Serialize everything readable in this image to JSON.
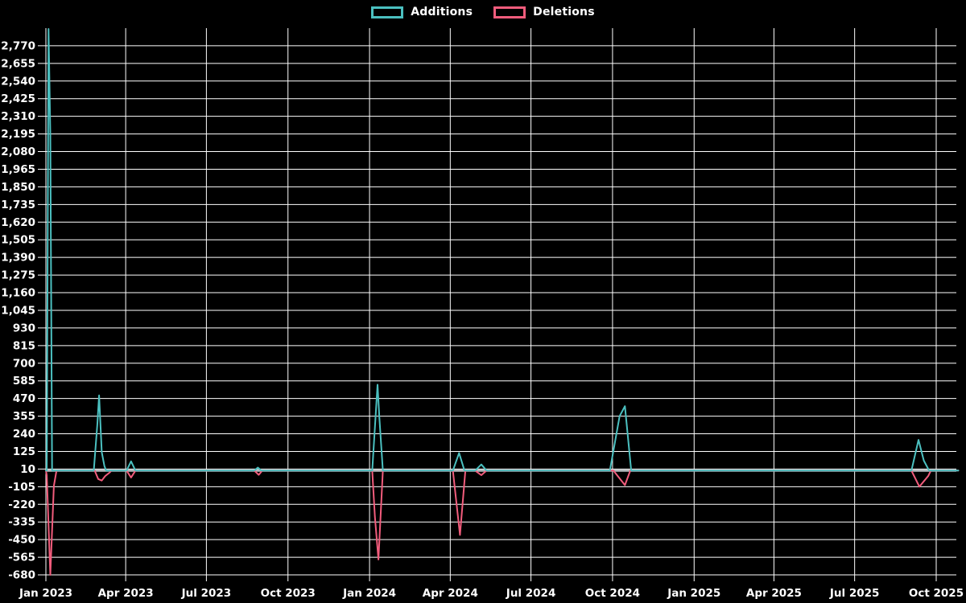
{
  "legend": {
    "items": [
      {
        "label": "Additions",
        "color": "#4bc0c0"
      },
      {
        "label": "Deletions",
        "color": "#f25c7c"
      }
    ]
  },
  "chart_data": {
    "type": "line",
    "title": "",
    "xlabel": "",
    "ylabel": "",
    "background_color": "#000000",
    "grid": true,
    "grid_color": "#ffffff",
    "zero_line_color": "#b3b9bd",
    "legend_position": "top-center",
    "x_axis": {
      "start_date": "2023-01-01",
      "end_date": "2025-10-26",
      "tick_labels": [
        "Jan 2023",
        "Apr 2023",
        "Jul 2023",
        "Oct 2023",
        "Jan 2024",
        "Apr 2024",
        "Jul 2024",
        "Oct 2024",
        "Jan 2025",
        "Apr 2025",
        "Jul 2025",
        "Oct 2025"
      ],
      "tick_dates": [
        "2023-01-01",
        "2023-04-01",
        "2023-07-01",
        "2023-10-01",
        "2024-01-01",
        "2024-04-01",
        "2024-07-01",
        "2024-10-01",
        "2025-01-01",
        "2025-04-01",
        "2025-07-01",
        "2025-10-01"
      ]
    },
    "y_axis": {
      "min": -680,
      "max": 2885,
      "tick_step": 115,
      "first_labeled_tick": 2770,
      "tick_labels": [
        "2,770",
        "2,655",
        "2,540",
        "2,425",
        "2,310",
        "2,195",
        "2,080",
        "1,965",
        "1,850",
        "1,735",
        "1,620",
        "1,505",
        "1,390",
        "1,275",
        "1,160",
        "1,045",
        "930",
        "815",
        "700",
        "585",
        "470",
        "355",
        "240",
        "125",
        "10",
        "-105",
        "-220",
        "-335",
        "-450",
        "-565",
        "-680"
      ]
    },
    "note": "Daily series; values are 0 between the anchor points listed below.",
    "series": [
      {
        "name": "Additions",
        "color": "#4bc0c0",
        "points": [
          [
            "2023-01-01",
            0
          ],
          [
            "2023-01-02",
            0
          ],
          [
            "2023-01-04",
            2880
          ],
          [
            "2023-01-05",
            2540
          ],
          [
            "2023-01-06",
            2195
          ],
          [
            "2023-01-08",
            0
          ],
          [
            "2023-02-24",
            0
          ],
          [
            "2023-02-28",
            300
          ],
          [
            "2023-03-02",
            490
          ],
          [
            "2023-03-05",
            120
          ],
          [
            "2023-03-08",
            30
          ],
          [
            "2023-03-10",
            0
          ],
          [
            "2023-04-02",
            0
          ],
          [
            "2023-04-07",
            60
          ],
          [
            "2023-04-12",
            0
          ],
          [
            "2023-08-24",
            0
          ],
          [
            "2023-08-28",
            20
          ],
          [
            "2023-09-01",
            0
          ],
          [
            "2024-01-04",
            0
          ],
          [
            "2024-01-10",
            560
          ],
          [
            "2024-01-12",
            350
          ],
          [
            "2024-01-16",
            0
          ],
          [
            "2024-04-04",
            0
          ],
          [
            "2024-04-11",
            115
          ],
          [
            "2024-04-17",
            0
          ],
          [
            "2024-04-29",
            0
          ],
          [
            "2024-05-06",
            40
          ],
          [
            "2024-05-12",
            0
          ],
          [
            "2024-09-28",
            0
          ],
          [
            "2024-10-09",
            355
          ],
          [
            "2024-10-15",
            420
          ],
          [
            "2024-10-22",
            0
          ],
          [
            "2025-09-03",
            0
          ],
          [
            "2025-09-11",
            200
          ],
          [
            "2025-09-17",
            65
          ],
          [
            "2025-09-23",
            0
          ],
          [
            "2025-10-26",
            0
          ]
        ]
      },
      {
        "name": "Deletions",
        "color": "#f25c7c",
        "points": [
          [
            "2023-01-01",
            0
          ],
          [
            "2023-01-02",
            -30
          ],
          [
            "2023-01-06",
            -680
          ],
          [
            "2023-01-10",
            -100
          ],
          [
            "2023-01-13",
            0
          ],
          [
            "2023-02-25",
            0
          ],
          [
            "2023-03-01",
            -55
          ],
          [
            "2023-03-05",
            -65
          ],
          [
            "2023-03-09",
            -35
          ],
          [
            "2023-03-14",
            -12
          ],
          [
            "2023-03-16",
            0
          ],
          [
            "2023-04-02",
            0
          ],
          [
            "2023-04-07",
            -45
          ],
          [
            "2023-04-12",
            0
          ],
          [
            "2023-08-24",
            0
          ],
          [
            "2023-08-29",
            -28
          ],
          [
            "2023-09-02",
            0
          ],
          [
            "2024-01-04",
            0
          ],
          [
            "2024-01-07",
            -300
          ],
          [
            "2024-01-11",
            -580
          ],
          [
            "2024-01-16",
            0
          ],
          [
            "2024-04-04",
            0
          ],
          [
            "2024-04-12",
            -420
          ],
          [
            "2024-04-18",
            0
          ],
          [
            "2024-04-29",
            0
          ],
          [
            "2024-05-06",
            -30
          ],
          [
            "2024-05-12",
            0
          ],
          [
            "2024-10-02",
            0
          ],
          [
            "2024-10-15",
            -95
          ],
          [
            "2024-10-21",
            0
          ],
          [
            "2025-09-03",
            0
          ],
          [
            "2025-09-12",
            -105
          ],
          [
            "2025-09-22",
            -35
          ],
          [
            "2025-09-25",
            0
          ],
          [
            "2025-10-26",
            0
          ]
        ]
      }
    ]
  }
}
